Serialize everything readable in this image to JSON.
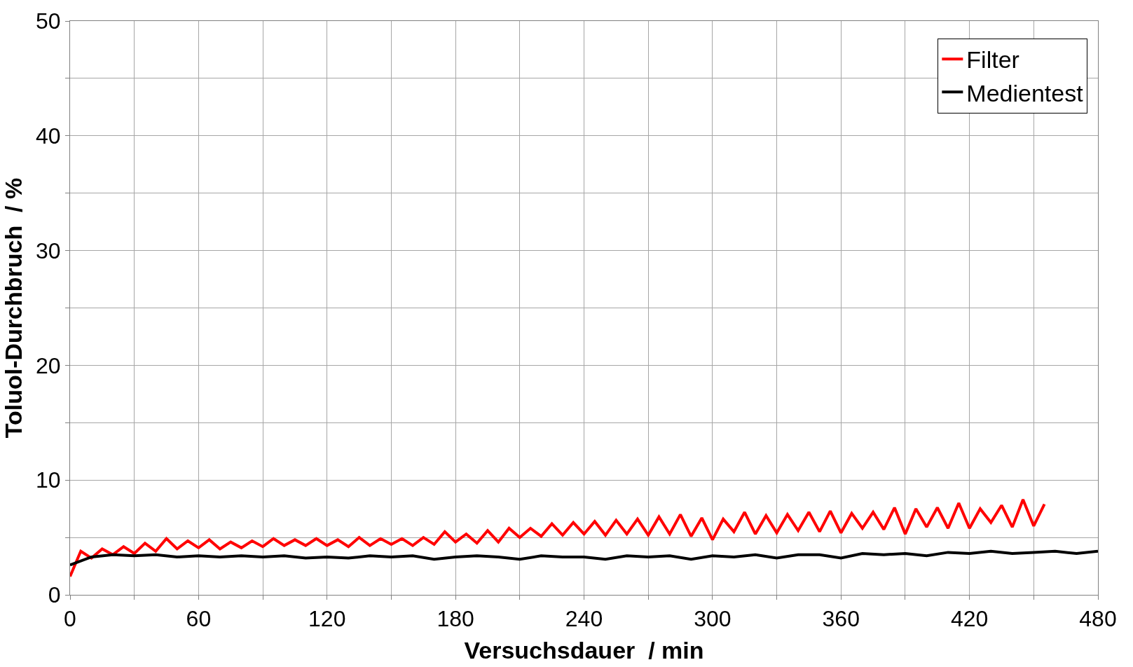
{
  "chart_data": {
    "type": "line",
    "xlabel": "Versuchsdauer  / min",
    "ylabel": "Toluol-Durchbruch  / %",
    "xlim": [
      0,
      480
    ],
    "ylim": [
      0,
      50
    ],
    "xticks": [
      0,
      {
        "value": 30,
        "label": null
      },
      60,
      {
        "value": 90,
        "label": null
      },
      120,
      {
        "value": 150,
        "label": null
      },
      180,
      {
        "value": 210,
        "label": null
      },
      240,
      {
        "value": 270,
        "label": null
      },
      300,
      {
        "value": 330,
        "label": null
      },
      360,
      {
        "value": 390,
        "label": null
      },
      420,
      {
        "value": 450,
        "label": null
      },
      480
    ],
    "yticks": [
      0,
      {
        "value": 5,
        "label": null
      },
      10,
      {
        "value": 15,
        "label": null
      },
      20,
      {
        "value": 25,
        "label": null
      },
      30,
      {
        "value": 35,
        "label": null
      },
      40,
      {
        "value": 45,
        "label": null
      },
      50
    ],
    "grid": true,
    "legend": "top right",
    "marker": "none",
    "line_style": "solid",
    "series": [
      {
        "name": "Filter",
        "color": "#ff0000",
        "x": [
          0,
          5,
          10,
          15,
          20,
          25,
          30,
          35,
          40,
          45,
          50,
          55,
          60,
          65,
          70,
          75,
          80,
          85,
          90,
          95,
          100,
          105,
          110,
          115,
          120,
          125,
          130,
          135,
          140,
          145,
          150,
          155,
          160,
          165,
          170,
          175,
          180,
          185,
          190,
          195,
          200,
          205,
          210,
          215,
          220,
          225,
          230,
          235,
          240,
          245,
          250,
          255,
          260,
          265,
          270,
          275,
          280,
          285,
          290,
          295,
          300,
          305,
          310,
          315,
          320,
          325,
          330,
          335,
          340,
          345,
          350,
          355,
          360,
          365,
          370,
          375,
          380,
          385,
          390,
          395,
          400,
          405,
          410,
          415,
          420,
          425,
          430,
          435,
          440,
          445,
          450,
          455
        ],
        "values": [
          1.6,
          3.8,
          3.2,
          4.0,
          3.5,
          4.2,
          3.6,
          4.5,
          3.8,
          4.9,
          4.0,
          4.7,
          4.1,
          4.8,
          4.0,
          4.6,
          4.1,
          4.7,
          4.2,
          4.9,
          4.3,
          4.8,
          4.3,
          4.9,
          4.3,
          4.8,
          4.2,
          5.0,
          4.3,
          4.9,
          4.4,
          4.9,
          4.3,
          5.0,
          4.4,
          5.5,
          4.6,
          5.3,
          4.5,
          5.6,
          4.6,
          5.8,
          5.0,
          5.8,
          5.1,
          6.2,
          5.2,
          6.3,
          5.3,
          6.4,
          5.2,
          6.5,
          5.3,
          6.6,
          5.2,
          6.8,
          5.3,
          7.0,
          5.1,
          6.7,
          4.8,
          6.6,
          5.5,
          7.2,
          5.3,
          6.9,
          5.4,
          7.0,
          5.6,
          7.2,
          5.5,
          7.3,
          5.4,
          7.1,
          5.8,
          7.2,
          5.7,
          7.6,
          5.3,
          7.5,
          5.9,
          7.6,
          5.8,
          8.0,
          5.8,
          7.5,
          6.3,
          7.8,
          5.9,
          8.3,
          6.0,
          7.9
        ]
      },
      {
        "name": "Medientest",
        "color": "#000000",
        "x": [
          0,
          10,
          20,
          30,
          40,
          50,
          60,
          70,
          80,
          90,
          100,
          110,
          120,
          130,
          140,
          150,
          160,
          170,
          180,
          190,
          200,
          210,
          220,
          230,
          240,
          250,
          260,
          270,
          280,
          290,
          300,
          310,
          320,
          330,
          340,
          350,
          360,
          370,
          380,
          390,
          400,
          410,
          420,
          430,
          440,
          450,
          460,
          470,
          480
        ],
        "values": [
          2.6,
          3.3,
          3.5,
          3.4,
          3.5,
          3.3,
          3.4,
          3.3,
          3.4,
          3.3,
          3.4,
          3.2,
          3.3,
          3.2,
          3.4,
          3.3,
          3.4,
          3.1,
          3.3,
          3.4,
          3.3,
          3.1,
          3.4,
          3.3,
          3.3,
          3.1,
          3.4,
          3.3,
          3.4,
          3.1,
          3.4,
          3.3,
          3.5,
          3.2,
          3.5,
          3.5,
          3.2,
          3.6,
          3.5,
          3.6,
          3.4,
          3.7,
          3.6,
          3.8,
          3.6,
          3.7,
          3.8,
          3.6,
          3.8
        ]
      }
    ]
  }
}
